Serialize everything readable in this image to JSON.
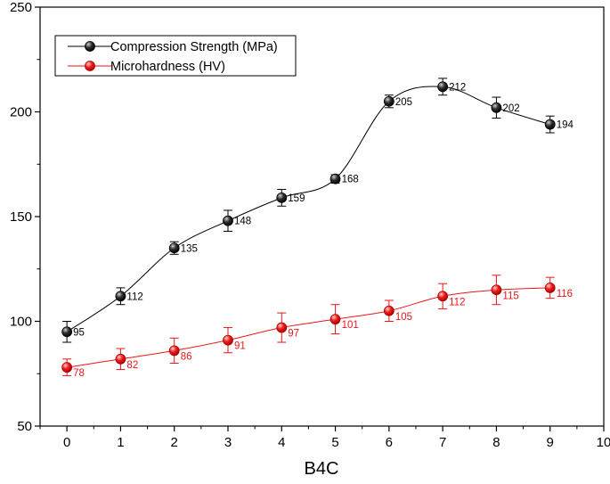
{
  "chart_data": {
    "type": "line",
    "title": "",
    "xlabel": "B4C",
    "ylabel": "",
    "x": [
      0,
      1,
      2,
      3,
      4,
      5,
      6,
      7,
      8,
      9
    ],
    "xlim": [
      -0.5,
      10
    ],
    "ylim": [
      50,
      250
    ],
    "x_ticks": [
      "0",
      "1",
      "2",
      "3",
      "4",
      "5",
      "6",
      "7",
      "8",
      "9",
      "10"
    ],
    "y_ticks": [
      "50",
      "100",
      "150",
      "200",
      "250"
    ],
    "grid": false,
    "legend_position": "top-left",
    "series": [
      {
        "name": "Compression Strength (MPa)",
        "color": "#000000",
        "values": [
          95,
          112,
          135,
          148,
          159,
          168,
          205,
          212,
          202,
          194
        ],
        "errors": [
          5,
          4,
          3,
          5,
          4,
          2,
          3,
          4,
          5,
          4
        ],
        "labels": [
          "95",
          "112",
          "135",
          "148",
          "159",
          "168",
          "205",
          "212",
          "202",
          "194"
        ]
      },
      {
        "name": "Microhardness (HV)",
        "color": "#e8161b",
        "values": [
          78,
          82,
          86,
          91,
          97,
          101,
          105,
          112,
          115,
          116
        ],
        "errors": [
          4,
          5,
          6,
          6,
          7,
          7,
          5,
          6,
          7,
          5
        ],
        "labels": [
          "78",
          "82",
          "86",
          "91",
          "97",
          "101",
          "105",
          "112",
          "115",
          "116"
        ]
      }
    ]
  }
}
